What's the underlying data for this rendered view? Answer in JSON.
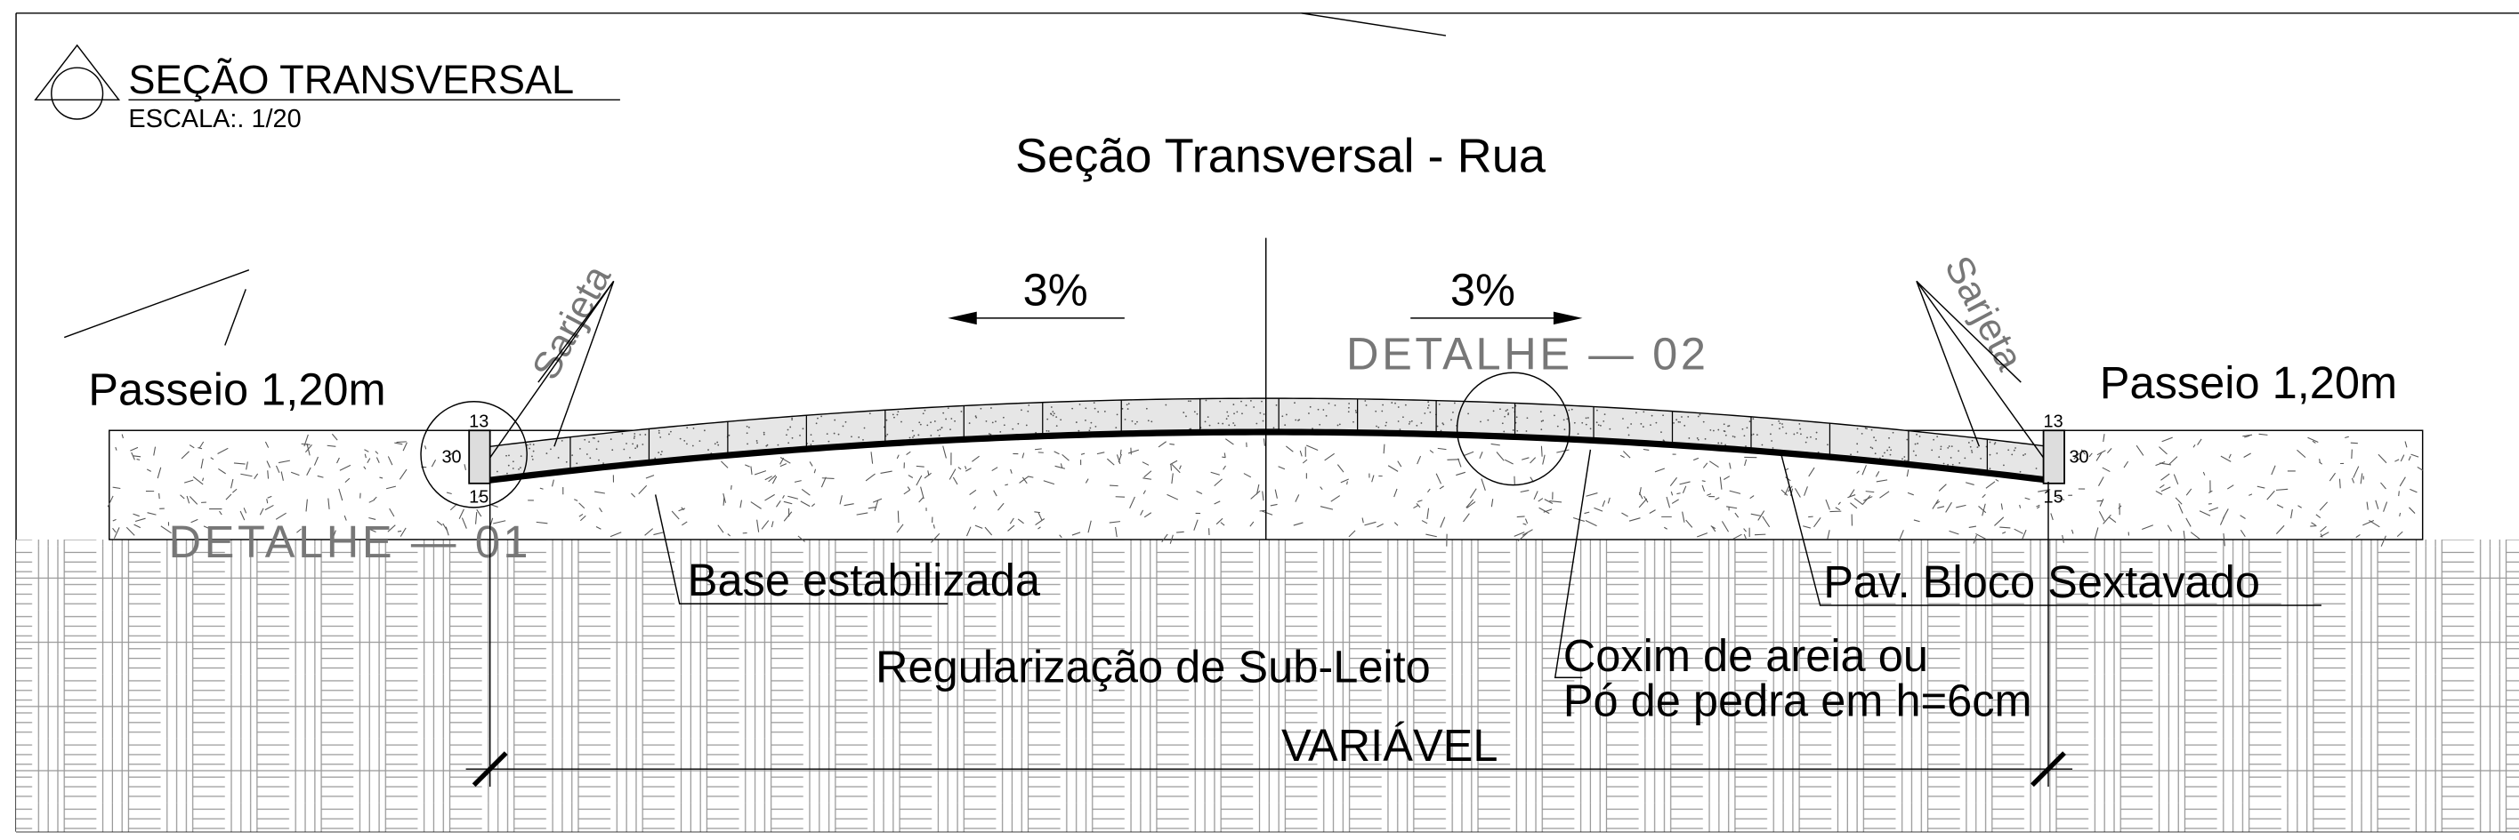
{
  "header": {
    "title": "SEÇÃO TRANSVERSAL",
    "scale": "ESCALA:. 1/20"
  },
  "drawing": {
    "title": "Seção Transversal - Rua",
    "slopes": [
      "3%",
      "3%"
    ],
    "details": [
      "DETALHE — 01",
      "DETALHE — 02"
    ],
    "gutters": [
      "Sarjeta",
      "Sarjeta"
    ],
    "sidewalks": [
      "Passeio 1,20m",
      "Passeio 1,20m"
    ],
    "curb_left": [
      "13",
      "30",
      "15"
    ],
    "curb_right": [
      "13",
      "30",
      "15"
    ],
    "layers": {
      "base": "Base estabilizada",
      "subgrade": "Regularização de Sub-Leito",
      "bedding": [
        "Coxim de areia ou",
        "Pó de pedra em h=6cm"
      ],
      "paving": "Pav. Bloco Sextavado"
    },
    "width": "VARIÁVEL"
  }
}
